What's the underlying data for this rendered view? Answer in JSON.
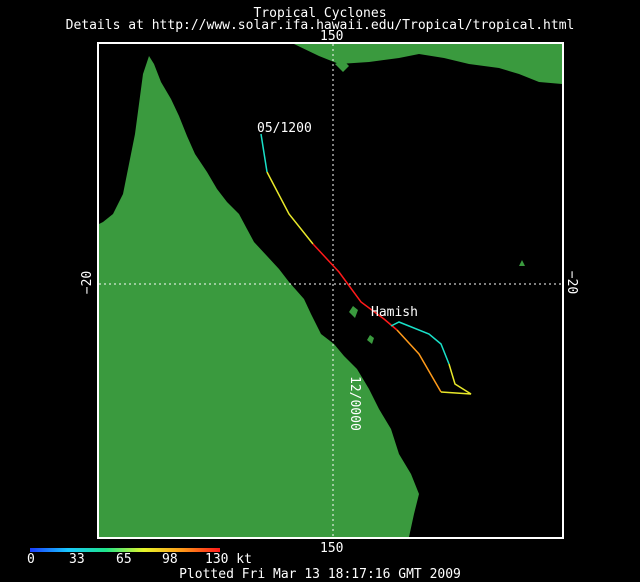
{
  "header": {
    "title": "Tropical Cyclones",
    "details": "Details at http://www.solar.ifa.hawaii.edu/Tropical/tropical.html"
  },
  "map": {
    "lon_label_top": "150",
    "lon_label_bottom": "150",
    "lat_label_left": "−20",
    "lat_label_right": "−20",
    "track_start_label": "05/1200",
    "storm_name": "Hamish",
    "track_end_label": "12/0000",
    "colors": {
      "land": "#3a9a3e",
      "ocean": "#000000",
      "grid": "#ffffff",
      "track_weak": "#19e0c8",
      "track_moderate": "#e8e82a",
      "track_strong": "#ff1a1a",
      "track_orange": "#ff9a1a"
    }
  },
  "legend": {
    "ticks": [
      "0",
      "33",
      "65",
      "98",
      "130 kt"
    ]
  },
  "footer": {
    "plotted": "Plotted Fri Mar 13 18:17:16 GMT 2009"
  }
}
